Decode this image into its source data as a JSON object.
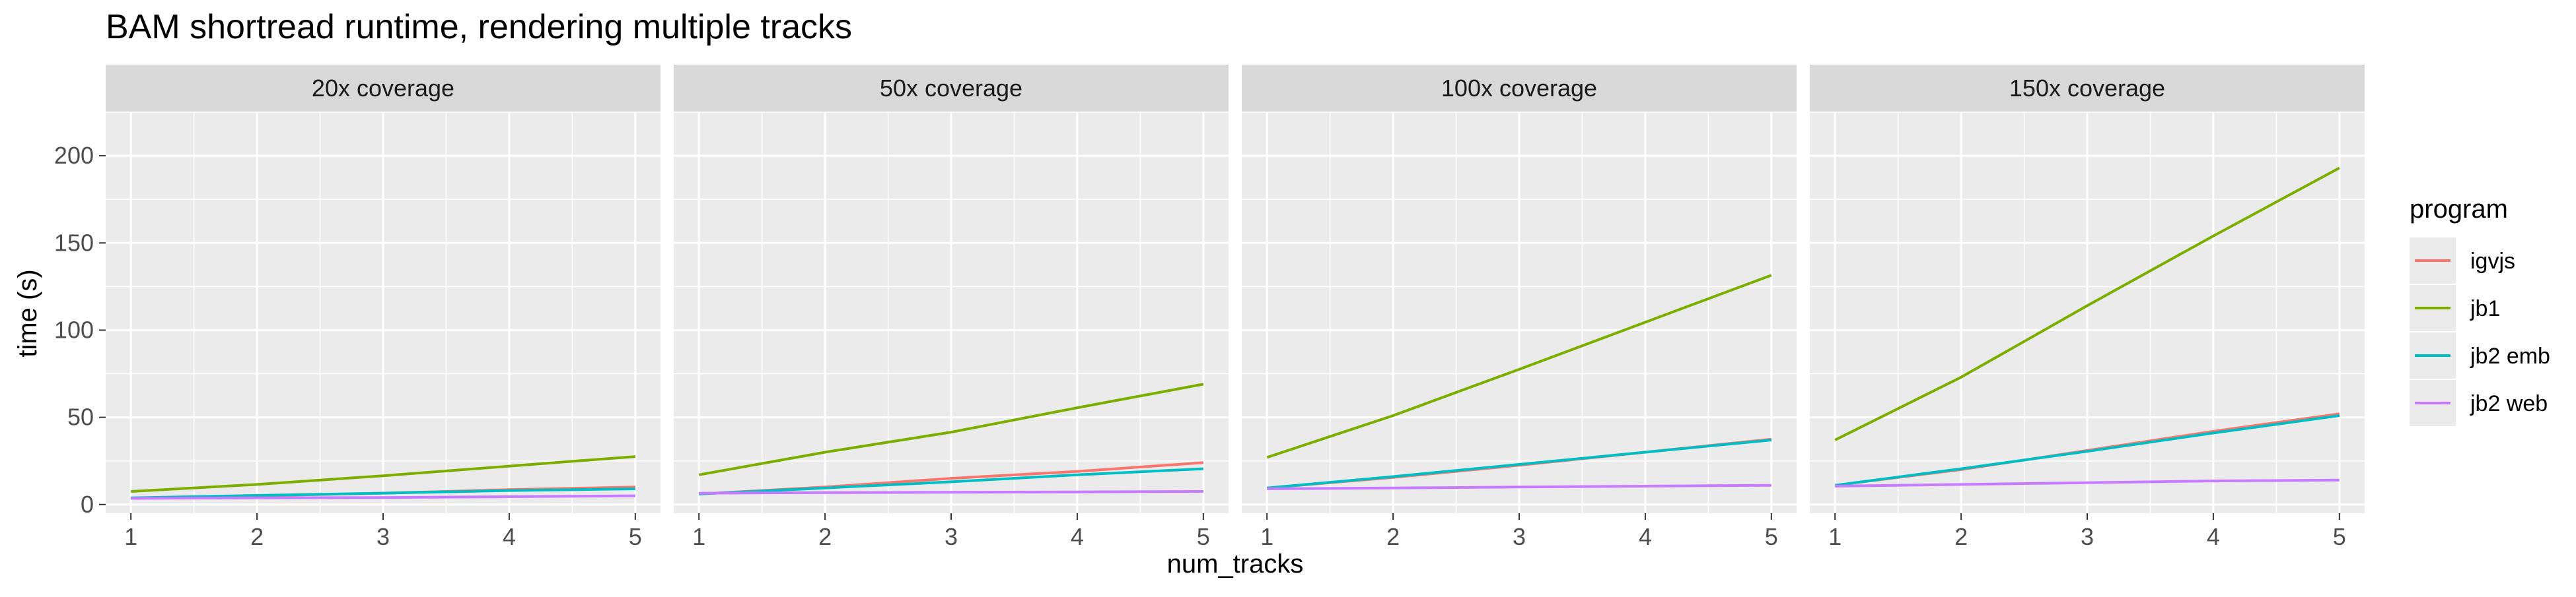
{
  "chart_data": {
    "type": "line",
    "title": "BAM shortread runtime, rendering multiple tracks",
    "xlabel": "num_tracks",
    "ylabel": "time (s)",
    "x": [
      1,
      2,
      3,
      4,
      5
    ],
    "xlim": [
      0.8,
      5.2
    ],
    "ylim": [
      -5,
      225
    ],
    "yticks": [
      0,
      50,
      100,
      150,
      200
    ],
    "grid": true,
    "legend": {
      "title": "program",
      "placement": "right",
      "entries": [
        {
          "label": "igvjs",
          "color": "#F8766D"
        },
        {
          "label": "jb1",
          "color": "#7CAE00"
        },
        {
          "label": "jb2 emb",
          "color": "#00BFC4"
        },
        {
          "label": "jb2 web",
          "color": "#C77CFF"
        }
      ]
    },
    "facets": [
      {
        "label": "20x coverage",
        "series": [
          {
            "name": "igvjs",
            "values": [
              3.5,
              5.0,
              6.5,
              8.5,
              10.0
            ]
          },
          {
            "name": "jb1",
            "values": [
              7.5,
              11.5,
              16.5,
              22.0,
              27.5
            ]
          },
          {
            "name": "jb2 emb",
            "values": [
              3.8,
              5.2,
              6.5,
              8.0,
              9.0
            ]
          },
          {
            "name": "jb2 web",
            "values": [
              3.5,
              3.8,
              4.0,
              4.5,
              5.0
            ]
          }
        ]
      },
      {
        "label": "50x coverage",
        "series": [
          {
            "name": "igvjs",
            "values": [
              6.0,
              10.0,
              15.0,
              19.0,
              24.0
            ]
          },
          {
            "name": "jb1",
            "values": [
              17.0,
              30.0,
              41.5,
              55.5,
              69.0
            ]
          },
          {
            "name": "jb2 emb",
            "values": [
              6.0,
              9.5,
              13.0,
              17.0,
              20.5
            ]
          },
          {
            "name": "jb2 web",
            "values": [
              6.5,
              6.8,
              7.0,
              7.2,
              7.5
            ]
          }
        ]
      },
      {
        "label": "100x coverage",
        "series": [
          {
            "name": "igvjs",
            "values": [
              9.5,
              15.5,
              22.5,
              30.0,
              37.5
            ]
          },
          {
            "name": "jb1",
            "values": [
              27.0,
              51.0,
              77.5,
              104.5,
              131.5
            ]
          },
          {
            "name": "jb2 emb",
            "values": [
              9.5,
              16.0,
              23.0,
              30.0,
              37.0
            ]
          },
          {
            "name": "jb2 web",
            "values": [
              9.0,
              9.5,
              10.0,
              10.5,
              11.0
            ]
          }
        ]
      },
      {
        "label": "150x coverage",
        "series": [
          {
            "name": "igvjs",
            "values": [
              11.0,
              20.0,
              31.0,
              42.0,
              52.0
            ]
          },
          {
            "name": "jb1",
            "values": [
              37.0,
              73.0,
              114.0,
              154.0,
              193.0
            ]
          },
          {
            "name": "jb2 emb",
            "values": [
              11.0,
              20.5,
              30.5,
              41.0,
              51.0
            ]
          },
          {
            "name": "jb2 web",
            "values": [
              10.5,
              11.5,
              12.5,
              13.5,
              14.0
            ]
          }
        ]
      }
    ]
  }
}
